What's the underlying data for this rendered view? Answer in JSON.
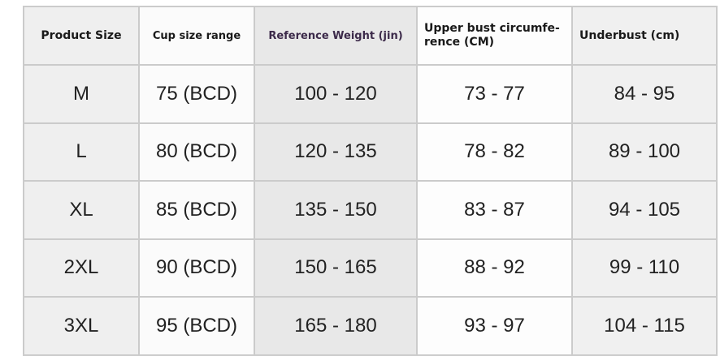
{
  "headers": [
    "Product Size",
    "Cup size range",
    "Reference Weight (jin)",
    "Upper bust circumfe- rence (CM)",
    "Underbust (cm)"
  ],
  "rows": [
    [
      "M",
      "75 (BCD)",
      "100 - 120",
      "73 - 77",
      "84 - 95"
    ],
    [
      "L",
      "80 (BCD)",
      "120 - 135",
      "78 - 82",
      "89 - 100"
    ],
    [
      "XL",
      "85 (BCD)",
      "135 - 150",
      "83 - 87",
      "94 - 105"
    ],
    [
      "2XL",
      "90 (BCD)",
      "150 - 165",
      "88 - 92",
      "99 - 110"
    ],
    [
      "3XL",
      "95 (BCD)",
      "165 - 180",
      "93 - 97",
      "104 - 115"
    ]
  ],
  "colors": {
    "header_accent_text": "#3c2a4a",
    "border": "#cbcbcb"
  }
}
